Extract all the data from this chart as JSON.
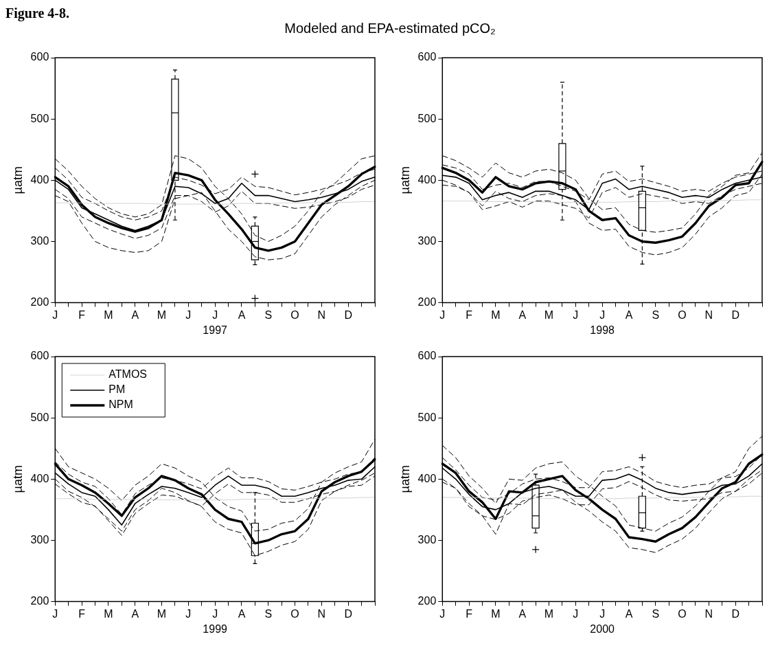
{
  "chart_data": [
    {
      "type": "line",
      "title": "Modeled and EPA-estimated pCO₂",
      "annotations": [
        "Figure 4-8."
      ],
      "xlabel": "1997",
      "ylabel": "µatm",
      "ylim": [
        200,
        600
      ],
      "yticks": [
        200,
        300,
        400,
        500,
        600
      ],
      "categories": [
        "J",
        null,
        "F",
        null,
        "M",
        null,
        "A",
        null,
        "M",
        null,
        "J",
        null,
        "J",
        null,
        "A",
        null,
        "S",
        null,
        "O",
        null,
        "N",
        null,
        "D",
        null,
        null
      ],
      "series": [
        {
          "color": "#c8c8c8",
          "values": [
            363,
            363,
            363,
            362,
            362,
            362,
            362,
            362,
            361,
            361,
            361,
            361,
            361,
            361,
            362,
            362,
            362,
            363,
            363,
            363,
            364,
            364,
            364,
            365,
            365
          ]
        },
        {
          "color": "#000000",
          "values": [
            400,
            385,
            355,
            345,
            335,
            325,
            318,
            325,
            335,
            390,
            388,
            378,
            362,
            370,
            395,
            375,
            375,
            370,
            365,
            368,
            372,
            378,
            385,
            398,
            405
          ]
        },
        {
          "color": "#000000",
          "line_style": "dashed",
          "values": [
            420,
            400,
            372,
            362,
            350,
            340,
            335,
            340,
            350,
            405,
            400,
            392,
            378,
            385,
            405,
            390,
            388,
            382,
            376,
            380,
            385,
            392,
            400,
            412,
            418
          ]
        },
        {
          "color": "#000000",
          "line_style": "dashed",
          "values": [
            385,
            370,
            340,
            330,
            320,
            312,
            305,
            310,
            322,
            375,
            375,
            365,
            348,
            358,
            382,
            362,
            362,
            358,
            354,
            356,
            360,
            365,
            372,
            385,
            392
          ]
        },
        {
          "color": "#000000",
          "values": [
            405,
            390,
            360,
            340,
            330,
            322,
            316,
            322,
            335,
            412,
            408,
            400,
            368,
            345,
            320,
            290,
            285,
            290,
            300,
            330,
            360,
            375,
            390,
            410,
            422
          ]
        },
        {
          "color": "#000000",
          "line_style": "dashed",
          "values": [
            435,
            415,
            390,
            370,
            355,
            345,
            340,
            345,
            360,
            440,
            435,
            420,
            390,
            370,
            345,
            310,
            300,
            310,
            325,
            350,
            380,
            395,
            415,
            435,
            440
          ]
        },
        {
          "color": "#000000",
          "line_style": "dashed",
          "values": [
            375,
            365,
            330,
            300,
            290,
            285,
            282,
            285,
            300,
            370,
            375,
            380,
            350,
            320,
            300,
            275,
            270,
            272,
            280,
            310,
            340,
            360,
            375,
            390,
            400
          ]
        },
        {
          "type": "box",
          "color": "#000000",
          "boxes": [
            null,
            null,
            null,
            null,
            null,
            null,
            null,
            null,
            null,
            {
              "low": 335,
              "q1": 400,
              "median": 510,
              "q3": 565,
              "high": 580
            },
            null,
            null,
            null,
            null,
            null,
            {
              "low": 262,
              "q1": 270,
              "median": 300,
              "q3": 325,
              "high": 340,
              "outliers": [
                410,
                207
              ]
            },
            null,
            null,
            null,
            null,
            null,
            null,
            null,
            null,
            null
          ]
        }
      ]
    },
    {
      "type": "line",
      "xlabel": "1998",
      "ylabel": "µatm",
      "ylim": [
        200,
        600
      ],
      "yticks": [
        200,
        300,
        400,
        500,
        600
      ],
      "categories": [
        "J",
        null,
        "F",
        null,
        "M",
        null,
        "A",
        null,
        "M",
        null,
        "J",
        null,
        "J",
        null,
        "A",
        null,
        "S",
        null,
        "O",
        null,
        "N",
        null,
        "D",
        null,
        null
      ],
      "series": [
        {
          "color": "#c8c8c8",
          "values": [
            366,
            366,
            366,
            365,
            365,
            365,
            365,
            365,
            364,
            364,
            364,
            364,
            364,
            364,
            365,
            365,
            365,
            366,
            366,
            366,
            367,
            367,
            367,
            368,
            368
          ]
        },
        {
          "color": "#000000",
          "values": [
            408,
            405,
            395,
            368,
            375,
            380,
            372,
            382,
            382,
            375,
            368,
            352,
            395,
            402,
            385,
            390,
            385,
            380,
            372,
            375,
            372,
            385,
            395,
            400,
            405
          ]
        },
        {
          "color": "#000000",
          "line_style": "dashed",
          "values": [
            425,
            420,
            410,
            385,
            392,
            395,
            388,
            398,
            398,
            390,
            382,
            368,
            410,
            415,
            398,
            402,
            396,
            390,
            382,
            385,
            382,
            395,
            405,
            410,
            415
          ]
        },
        {
          "color": "#000000",
          "line_style": "dashed",
          "values": [
            392,
            390,
            380,
            352,
            358,
            365,
            356,
            366,
            366,
            360,
            354,
            338,
            380,
            388,
            372,
            378,
            374,
            370,
            362,
            365,
            362,
            375,
            385,
            390,
            395
          ]
        },
        {
          "color": "#000000",
          "values": [
            420,
            412,
            400,
            380,
            405,
            390,
            385,
            395,
            398,
            395,
            385,
            350,
            335,
            338,
            310,
            300,
            298,
            302,
            308,
            330,
            358,
            372,
            392,
            395,
            430
          ]
        },
        {
          "color": "#000000",
          "line_style": "dashed",
          "values": [
            440,
            432,
            420,
            405,
            428,
            412,
            405,
            415,
            418,
            412,
            400,
            370,
            352,
            355,
            328,
            318,
            315,
            318,
            322,
            345,
            375,
            390,
            408,
            412,
            445
          ]
        },
        {
          "color": "#000000",
          "line_style": "dashed",
          "values": [
            400,
            392,
            380,
            358,
            382,
            370,
            365,
            375,
            378,
            375,
            365,
            330,
            318,
            320,
            292,
            282,
            278,
            282,
            290,
            312,
            340,
            355,
            375,
            380,
            410
          ]
        },
        {
          "type": "box",
          "color": "#000000",
          "boxes": [
            null,
            null,
            null,
            null,
            null,
            null,
            null,
            null,
            null,
            {
              "low": 335,
              "q1": 385,
              "median": 415,
              "q3": 460,
              "high": 560
            },
            null,
            null,
            null,
            null,
            null,
            {
              "low": 263,
              "q1": 318,
              "median": 355,
              "q3": 382,
              "high": 423
            },
            null,
            null,
            null,
            null,
            null,
            null,
            null,
            null,
            null
          ]
        }
      ]
    },
    {
      "type": "line",
      "xlabel": "1999",
      "ylabel": "µatm",
      "legend": "top left",
      "ylim": [
        200,
        600
      ],
      "yticks": [
        200,
        300,
        400,
        500,
        600
      ],
      "categories": [
        "J",
        null,
        "F",
        null,
        "M",
        null,
        "A",
        null,
        "M",
        null,
        "J",
        null,
        "J",
        null,
        "A",
        null,
        "S",
        null,
        "O",
        null,
        "N",
        null,
        "D",
        null,
        null
      ],
      "series": [
        {
          "name": "ATMOS",
          "color": "#c8c8c8",
          "values": [
            368,
            368,
            368,
            367,
            367,
            367,
            367,
            367,
            366,
            366,
            366,
            366,
            366,
            366,
            367,
            367,
            367,
            368,
            368,
            368,
            369,
            369,
            369,
            370,
            370
          ]
        },
        {
          "name": "PM",
          "color": "#000000",
          "values": [
            410,
            392,
            378,
            372,
            350,
            325,
            360,
            375,
            388,
            385,
            378,
            370,
            390,
            405,
            390,
            390,
            385,
            372,
            372,
            378,
            385,
            390,
            398,
            400,
            420
          ]
        },
        {
          "color": "#000000",
          "line_style": "dashed",
          "values": [
            428,
            408,
            395,
            388,
            368,
            342,
            376,
            390,
            402,
            398,
            392,
            384,
            404,
            418,
            402,
            402,
            396,
            384,
            382,
            388,
            395,
            400,
            408,
            412,
            435
          ]
        },
        {
          "color": "#000000",
          "line_style": "dashed",
          "values": [
            392,
            376,
            362,
            356,
            332,
            308,
            344,
            360,
            374,
            372,
            364,
            356,
            376,
            392,
            378,
            378,
            374,
            362,
            362,
            368,
            375,
            380,
            388,
            390,
            405
          ]
        },
        {
          "name": "NPM",
          "color": "#000000",
          "values": [
            425,
            400,
            390,
            378,
            360,
            340,
            370,
            385,
            405,
            398,
            385,
            375,
            350,
            335,
            330,
            295,
            300,
            310,
            315,
            335,
            380,
            395,
            405,
            412,
            432
          ]
        },
        {
          "color": "#000000",
          "line_style": "dashed",
          "values": [
            450,
            420,
            410,
            400,
            385,
            365,
            390,
            405,
            425,
            418,
            405,
            395,
            370,
            355,
            348,
            315,
            318,
            328,
            332,
            352,
            395,
            410,
            420,
            428,
            465
          ]
        },
        {
          "color": "#000000",
          "line_style": "dashed",
          "values": [
            400,
            380,
            370,
            355,
            335,
            315,
            350,
            365,
            385,
            378,
            365,
            355,
            330,
            318,
            312,
            275,
            282,
            292,
            298,
            318,
            365,
            380,
            390,
            398,
            410
          ]
        },
        {
          "type": "box",
          "color": "#000000",
          "boxes": [
            null,
            null,
            null,
            null,
            null,
            null,
            null,
            null,
            null,
            null,
            null,
            null,
            null,
            null,
            null,
            {
              "low": 262,
              "q1": 275,
              "median": 295,
              "q3": 328,
              "high": 378
            },
            null,
            null,
            null,
            null,
            null,
            null,
            null,
            null,
            null
          ]
        }
      ]
    },
    {
      "type": "line",
      "xlabel": "2000",
      "ylabel": "µatm",
      "ylim": [
        200,
        600
      ],
      "yticks": [
        200,
        300,
        400,
        500,
        600
      ],
      "categories": [
        "J",
        null,
        "F",
        null,
        "M",
        null,
        "A",
        null,
        "M",
        null,
        "J",
        null,
        "J",
        null,
        "A",
        null,
        "S",
        null,
        "O",
        null,
        "N",
        null,
        "D",
        null,
        null
      ],
      "series": [
        {
          "color": "#c8c8c8",
          "values": [
            370,
            370,
            370,
            369,
            369,
            369,
            369,
            369,
            368,
            368,
            368,
            368,
            368,
            368,
            369,
            369,
            369,
            370,
            370,
            370,
            371,
            371,
            371,
            372,
            372
          ]
        },
        {
          "color": "#000000",
          "values": [
            418,
            400,
            375,
            355,
            350,
            360,
            378,
            385,
            388,
            382,
            372,
            372,
            398,
            400,
            408,
            398,
            385,
            378,
            375,
            378,
            380,
            390,
            392,
            405,
            425
          ]
        },
        {
          "color": "#000000",
          "line_style": "dashed",
          "values": [
            435,
            415,
            390,
            370,
            366,
            376,
            392,
            400,
            402,
            396,
            386,
            386,
            412,
            414,
            420,
            410,
            396,
            390,
            386,
            390,
            392,
            402,
            404,
            418,
            440
          ]
        },
        {
          "color": "#000000",
          "line_style": "dashed",
          "values": [
            400,
            385,
            360,
            340,
            334,
            344,
            364,
            370,
            374,
            368,
            358,
            358,
            384,
            386,
            396,
            386,
            374,
            366,
            364,
            366,
            368,
            378,
            380,
            392,
            410
          ]
        },
        {
          "color": "#000000",
          "values": [
            425,
            410,
            380,
            362,
            335,
            380,
            378,
            395,
            400,
            405,
            382,
            368,
            350,
            335,
            305,
            302,
            298,
            310,
            320,
            338,
            362,
            385,
            395,
            425,
            440
          ]
        },
        {
          "color": "#000000",
          "line_style": "dashed",
          "values": [
            455,
            435,
            405,
            385,
            360,
            400,
            398,
            418,
            425,
            428,
            405,
            390,
            372,
            356,
            325,
            320,
            315,
            328,
            338,
            356,
            380,
            402,
            412,
            450,
            470
          ]
        },
        {
          "color": "#000000",
          "line_style": "dashed",
          "values": [
            395,
            385,
            355,
            340,
            310,
            360,
            358,
            375,
            378,
            382,
            362,
            348,
            330,
            315,
            288,
            285,
            280,
            292,
            302,
            320,
            345,
            368,
            380,
            400,
            415
          ]
        },
        {
          "type": "box",
          "color": "#000000",
          "boxes": [
            null,
            null,
            null,
            null,
            null,
            null,
            null,
            {
              "low": 312,
              "q1": 320,
              "median": 340,
              "q3": 390,
              "high": 408,
              "outliers": [
                285
              ]
            },
            null,
            null,
            null,
            null,
            null,
            null,
            null,
            {
              "low": 315,
              "q1": 320,
              "median": 345,
              "q3": 372,
              "high": 420,
              "outliers": [
                435
              ]
            },
            null,
            null,
            null,
            null,
            null,
            null,
            null,
            null,
            null
          ]
        }
      ]
    }
  ]
}
